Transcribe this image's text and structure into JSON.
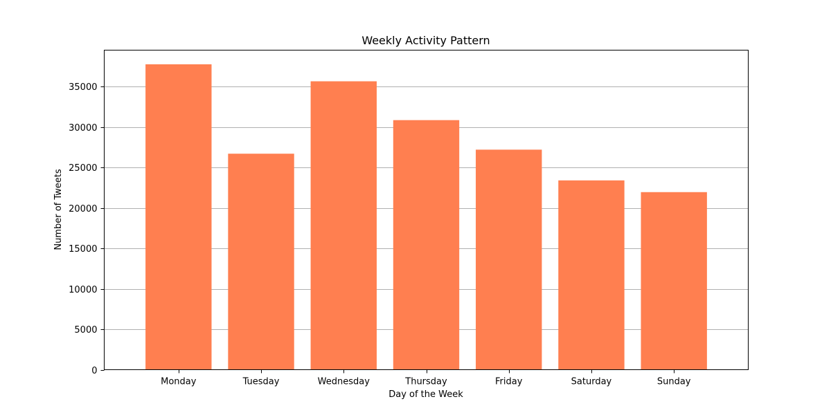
{
  "chart_data": {
    "type": "bar",
    "title": "Weekly Activity Pattern",
    "xlabel": "Day of the Week",
    "ylabel": "Number of Tweets",
    "categories": [
      "Monday",
      "Tuesday",
      "Wednesday",
      "Thursday",
      "Friday",
      "Saturday",
      "Sunday"
    ],
    "values": [
      37750,
      26700,
      35650,
      30850,
      27200,
      23400,
      21950
    ],
    "ylim": [
      0,
      39500
    ],
    "yticks": [
      0,
      5000,
      10000,
      15000,
      20000,
      25000,
      30000,
      35000
    ],
    "grid": "y-major",
    "bar_color": "#ff7f50",
    "legend": "none"
  }
}
